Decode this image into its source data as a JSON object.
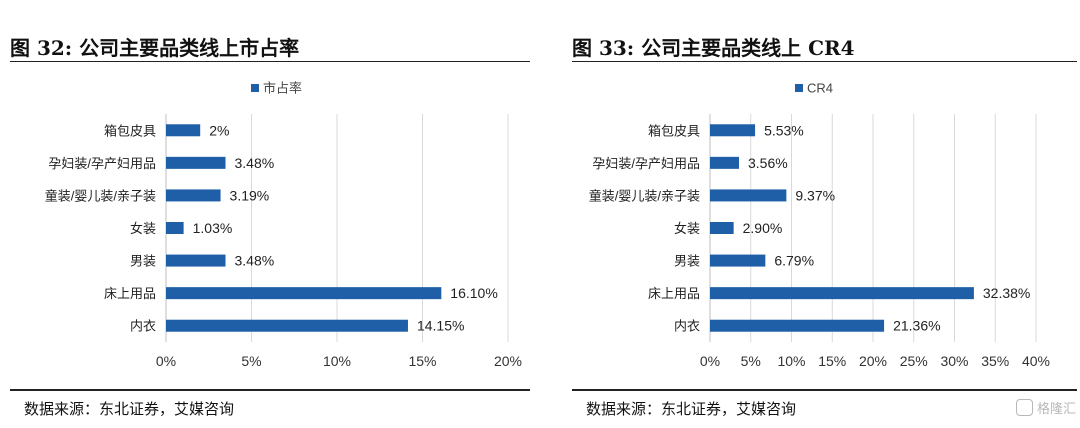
{
  "charts": [
    {
      "title": "图 32: 公司主要品类线上市占率",
      "source": "数据来源：东北证券，艾媒咨询",
      "chart_data": {
        "type": "bar",
        "orientation": "horizontal",
        "categories": [
          "箱包皮具",
          "孕妇装/孕产妇用品",
          "童装/婴儿装/亲子装",
          "女装",
          "男装",
          "床上用品",
          "内衣"
        ],
        "series": [
          {
            "name": "市占率",
            "values": [
              2,
              3.48,
              3.19,
              1.03,
              3.48,
              16.1,
              14.15
            ],
            "labels": [
              "2%",
              "3.48%",
              "3.19%",
              "1.03%",
              "3.48%",
              "16.10%",
              "14.15%"
            ]
          }
        ],
        "xlim": [
          0,
          20
        ],
        "xticks": [
          "0%",
          "5%",
          "10%",
          "15%",
          "20%"
        ],
        "grid": true,
        "legend": "top",
        "color": "#1f5fa8"
      }
    },
    {
      "title": "图 33: 公司主要品类线上 CR4",
      "source": "数据来源：东北证券，艾媒咨询",
      "chart_data": {
        "type": "bar",
        "orientation": "horizontal",
        "categories": [
          "箱包皮具",
          "孕妇装/孕产妇用品",
          "童装/婴儿装/亲子装",
          "女装",
          "男装",
          "床上用品",
          "内衣"
        ],
        "series": [
          {
            "name": "CR4",
            "values": [
              5.53,
              3.56,
              9.37,
              2.9,
              6.79,
              32.38,
              21.36
            ],
            "labels": [
              "5.53%",
              "3.56%",
              "9.37%",
              "2.90%",
              "6.79%",
              "32.38%",
              "21.36%"
            ]
          }
        ],
        "xlim": [
          0,
          40
        ],
        "xticks": [
          "0%",
          "5%",
          "10%",
          "15%",
          "20%",
          "25%",
          "30%",
          "35%",
          "40%"
        ],
        "grid": true,
        "legend": "top",
        "color": "#1f5fa8"
      }
    }
  ],
  "watermark": "格隆汇"
}
